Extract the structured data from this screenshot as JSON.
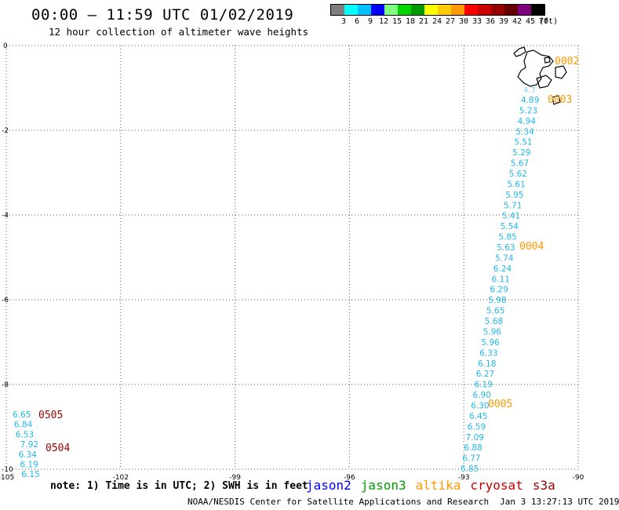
{
  "header": {
    "title": "00:00 – 11:59 UTC 01/02/2019",
    "subtitle": "12 hour collection of altimeter wave heights"
  },
  "colorbar": {
    "colors": [
      "#7f7f7f",
      "#00ffff",
      "#00bfff",
      "#0000ff",
      "#7fff7f",
      "#00d400",
      "#009900",
      "#ffff00",
      "#ffcc00",
      "#ff9900",
      "#ff0000",
      "#cc0000",
      "#990000",
      "#660000",
      "#7f007f",
      "#000000"
    ],
    "labels": [
      "3",
      "6",
      "9",
      "12",
      "15",
      "18",
      "21",
      "24",
      "27",
      "30",
      "33",
      "36",
      "39",
      "42",
      "45",
      "70",
      "(ft)"
    ]
  },
  "axes": {
    "x_ticks": [
      "-105",
      "-102",
      "-99",
      "-96",
      "-93",
      "-90"
    ],
    "y_ticks": [
      "0",
      "-2",
      "-4",
      "-6",
      "-8",
      "-10"
    ]
  },
  "track_main": {
    "color": "#22b8e8",
    "values": [
      "4.89",
      "5.23",
      "4.94",
      "5.34",
      "5.51",
      "5.29",
      "5.67",
      "5.62",
      "5.61",
      "5.95",
      "5.71",
      "5.41",
      "5.54",
      "5.85",
      "5.63",
      "5.74",
      "6.24",
      "6.11",
      "6.29",
      "5.98",
      "5.65",
      "5.68",
      "5.96",
      "5.96",
      "6.33",
      "6.18",
      "6.27",
      "6.19",
      "6.90",
      "6.30",
      "6.45",
      "6.59",
      "7.09",
      "6.88",
      "6.77",
      "6.85"
    ]
  },
  "track_west": {
    "color": "#22b8e8",
    "values": [
      "6.65",
      "6.84",
      "6.53",
      "7.92",
      "6.34",
      "6.19",
      "6.15"
    ]
  },
  "time_labels": {
    "altika": [
      "0002",
      "0003",
      "0004",
      "0005"
    ],
    "s3a": [
      "0505",
      "0504"
    ]
  },
  "note": "note: 1) Time is in UTC; 2) SWH is in feet",
  "legend": [
    {
      "name": "jason2",
      "color": "#0000ff"
    },
    {
      "name": "jason3",
      "color": "#009900"
    },
    {
      "name": "altika",
      "color": "#ff9900"
    },
    {
      "name": "cryosat",
      "color": "#cc0000"
    },
    {
      "name": "s3a",
      "color": "#990000"
    }
  ],
  "footer": {
    "credit": "NOAA/NESDIS Center for Satellite Applications and Research",
    "timestamp": "Jan  3 13:27:13 UTC 2019"
  }
}
